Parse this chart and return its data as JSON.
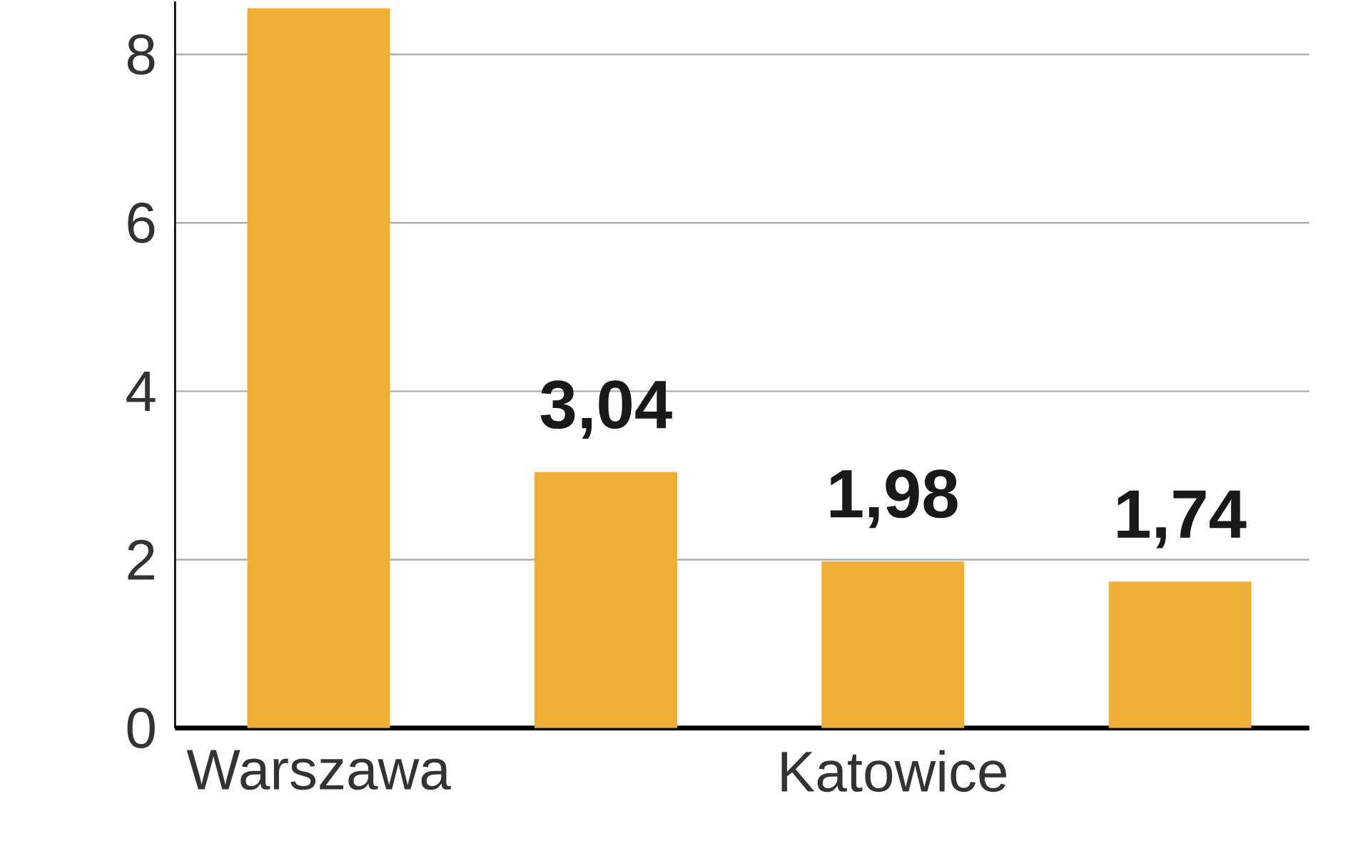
{
  "chart_data": {
    "type": "bar",
    "categories": [
      "Warszawa",
      null,
      "Katowice",
      null
    ],
    "values": [
      8.55,
      3.04,
      1.98,
      1.74
    ],
    "value_labels": [
      null,
      "3,04",
      "1,98",
      "1,74"
    ],
    "color": "#f0ae36",
    "ylim": [
      0,
      8.63
    ],
    "yticks": [
      0,
      2,
      4,
      6,
      8
    ],
    "grid": "y"
  }
}
